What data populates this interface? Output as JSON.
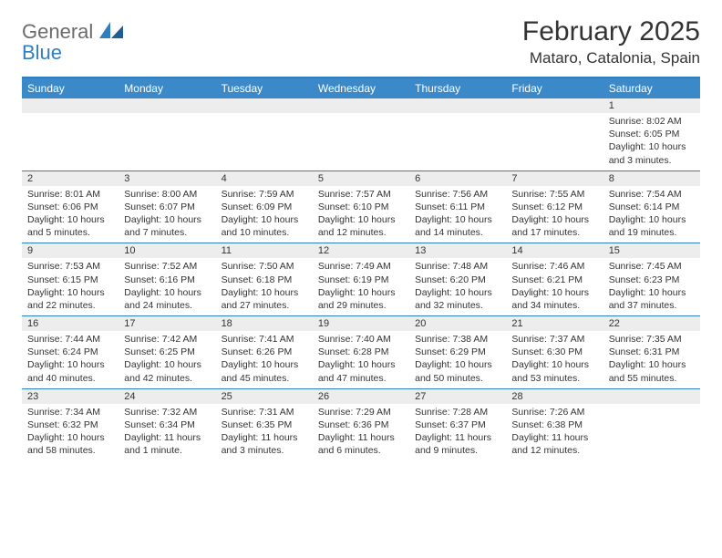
{
  "logo": {
    "word1": "General",
    "word2": "Blue"
  },
  "title": "February 2025",
  "location": "Mataro, Catalonia, Spain",
  "colors": {
    "header_bar": "#3b89c9",
    "accent_line": "#2f7ec2",
    "daynum_bg": "#ededed",
    "text": "#333333",
    "logo_gray": "#6b6b6b",
    "logo_blue": "#2f7ec2",
    "background": "#ffffff"
  },
  "weekdays": [
    "Sunday",
    "Monday",
    "Tuesday",
    "Wednesday",
    "Thursday",
    "Friday",
    "Saturday"
  ],
  "weeks": [
    [
      {
        "n": "",
        "sr": "",
        "ss": "",
        "dl": ""
      },
      {
        "n": "",
        "sr": "",
        "ss": "",
        "dl": ""
      },
      {
        "n": "",
        "sr": "",
        "ss": "",
        "dl": ""
      },
      {
        "n": "",
        "sr": "",
        "ss": "",
        "dl": ""
      },
      {
        "n": "",
        "sr": "",
        "ss": "",
        "dl": ""
      },
      {
        "n": "",
        "sr": "",
        "ss": "",
        "dl": ""
      },
      {
        "n": "1",
        "sr": "Sunrise: 8:02 AM",
        "ss": "Sunset: 6:05 PM",
        "dl": "Daylight: 10 hours and 3 minutes."
      }
    ],
    [
      {
        "n": "2",
        "sr": "Sunrise: 8:01 AM",
        "ss": "Sunset: 6:06 PM",
        "dl": "Daylight: 10 hours and 5 minutes."
      },
      {
        "n": "3",
        "sr": "Sunrise: 8:00 AM",
        "ss": "Sunset: 6:07 PM",
        "dl": "Daylight: 10 hours and 7 minutes."
      },
      {
        "n": "4",
        "sr": "Sunrise: 7:59 AM",
        "ss": "Sunset: 6:09 PM",
        "dl": "Daylight: 10 hours and 10 minutes."
      },
      {
        "n": "5",
        "sr": "Sunrise: 7:57 AM",
        "ss": "Sunset: 6:10 PM",
        "dl": "Daylight: 10 hours and 12 minutes."
      },
      {
        "n": "6",
        "sr": "Sunrise: 7:56 AM",
        "ss": "Sunset: 6:11 PM",
        "dl": "Daylight: 10 hours and 14 minutes."
      },
      {
        "n": "7",
        "sr": "Sunrise: 7:55 AM",
        "ss": "Sunset: 6:12 PM",
        "dl": "Daylight: 10 hours and 17 minutes."
      },
      {
        "n": "8",
        "sr": "Sunrise: 7:54 AM",
        "ss": "Sunset: 6:14 PM",
        "dl": "Daylight: 10 hours and 19 minutes."
      }
    ],
    [
      {
        "n": "9",
        "sr": "Sunrise: 7:53 AM",
        "ss": "Sunset: 6:15 PM",
        "dl": "Daylight: 10 hours and 22 minutes."
      },
      {
        "n": "10",
        "sr": "Sunrise: 7:52 AM",
        "ss": "Sunset: 6:16 PM",
        "dl": "Daylight: 10 hours and 24 minutes."
      },
      {
        "n": "11",
        "sr": "Sunrise: 7:50 AM",
        "ss": "Sunset: 6:18 PM",
        "dl": "Daylight: 10 hours and 27 minutes."
      },
      {
        "n": "12",
        "sr": "Sunrise: 7:49 AM",
        "ss": "Sunset: 6:19 PM",
        "dl": "Daylight: 10 hours and 29 minutes."
      },
      {
        "n": "13",
        "sr": "Sunrise: 7:48 AM",
        "ss": "Sunset: 6:20 PM",
        "dl": "Daylight: 10 hours and 32 minutes."
      },
      {
        "n": "14",
        "sr": "Sunrise: 7:46 AM",
        "ss": "Sunset: 6:21 PM",
        "dl": "Daylight: 10 hours and 34 minutes."
      },
      {
        "n": "15",
        "sr": "Sunrise: 7:45 AM",
        "ss": "Sunset: 6:23 PM",
        "dl": "Daylight: 10 hours and 37 minutes."
      }
    ],
    [
      {
        "n": "16",
        "sr": "Sunrise: 7:44 AM",
        "ss": "Sunset: 6:24 PM",
        "dl": "Daylight: 10 hours and 40 minutes."
      },
      {
        "n": "17",
        "sr": "Sunrise: 7:42 AM",
        "ss": "Sunset: 6:25 PM",
        "dl": "Daylight: 10 hours and 42 minutes."
      },
      {
        "n": "18",
        "sr": "Sunrise: 7:41 AM",
        "ss": "Sunset: 6:26 PM",
        "dl": "Daylight: 10 hours and 45 minutes."
      },
      {
        "n": "19",
        "sr": "Sunrise: 7:40 AM",
        "ss": "Sunset: 6:28 PM",
        "dl": "Daylight: 10 hours and 47 minutes."
      },
      {
        "n": "20",
        "sr": "Sunrise: 7:38 AM",
        "ss": "Sunset: 6:29 PM",
        "dl": "Daylight: 10 hours and 50 minutes."
      },
      {
        "n": "21",
        "sr": "Sunrise: 7:37 AM",
        "ss": "Sunset: 6:30 PM",
        "dl": "Daylight: 10 hours and 53 minutes."
      },
      {
        "n": "22",
        "sr": "Sunrise: 7:35 AM",
        "ss": "Sunset: 6:31 PM",
        "dl": "Daylight: 10 hours and 55 minutes."
      }
    ],
    [
      {
        "n": "23",
        "sr": "Sunrise: 7:34 AM",
        "ss": "Sunset: 6:32 PM",
        "dl": "Daylight: 10 hours and 58 minutes."
      },
      {
        "n": "24",
        "sr": "Sunrise: 7:32 AM",
        "ss": "Sunset: 6:34 PM",
        "dl": "Daylight: 11 hours and 1 minute."
      },
      {
        "n": "25",
        "sr": "Sunrise: 7:31 AM",
        "ss": "Sunset: 6:35 PM",
        "dl": "Daylight: 11 hours and 3 minutes."
      },
      {
        "n": "26",
        "sr": "Sunrise: 7:29 AM",
        "ss": "Sunset: 6:36 PM",
        "dl": "Daylight: 11 hours and 6 minutes."
      },
      {
        "n": "27",
        "sr": "Sunrise: 7:28 AM",
        "ss": "Sunset: 6:37 PM",
        "dl": "Daylight: 11 hours and 9 minutes."
      },
      {
        "n": "28",
        "sr": "Sunrise: 7:26 AM",
        "ss": "Sunset: 6:38 PM",
        "dl": "Daylight: 11 hours and 12 minutes."
      },
      {
        "n": "",
        "sr": "",
        "ss": "",
        "dl": ""
      }
    ]
  ]
}
